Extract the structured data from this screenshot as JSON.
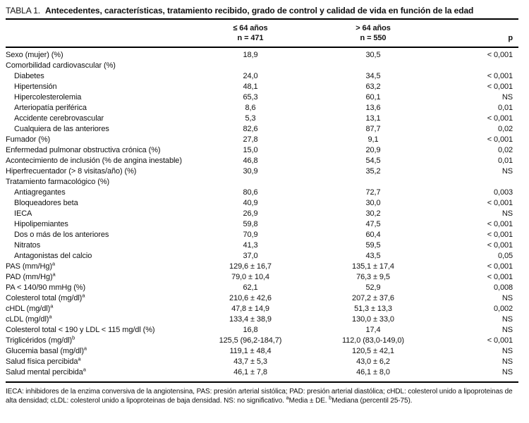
{
  "table": {
    "label": "TABLA 1.",
    "title": "Antecedentes, características, tratamiento recibido, grado de control y calidad de vida en función de la edad",
    "columns": [
      {
        "line1": "≤ 64 años",
        "line2": "n = 471"
      },
      {
        "line1": "> 64 años",
        "line2": "n = 550"
      },
      {
        "line1": "",
        "line2": "p"
      }
    ],
    "rows": [
      {
        "label": "Sexo (mujer) (%)",
        "indent": false,
        "sup": "",
        "v1": "18,9",
        "v2": "30,5",
        "p": "< 0,001"
      },
      {
        "label": "Comorbilidad cardiovascular (%)",
        "indent": false,
        "sup": "",
        "v1": "",
        "v2": "",
        "p": ""
      },
      {
        "label": "Diabetes",
        "indent": true,
        "sup": "",
        "v1": "24,0",
        "v2": "34,5",
        "p": "< 0,001"
      },
      {
        "label": "Hipertensión",
        "indent": true,
        "sup": "",
        "v1": "48,1",
        "v2": "63,2",
        "p": "< 0,001"
      },
      {
        "label": "Hipercolesterolemia",
        "indent": true,
        "sup": "",
        "v1": "65,3",
        "v2": "60,1",
        "p": "NS"
      },
      {
        "label": "Arteriopatía periférica",
        "indent": true,
        "sup": "",
        "v1": "8,6",
        "v2": "13,6",
        "p": "0,01"
      },
      {
        "label": "Accidente cerebrovascular",
        "indent": true,
        "sup": "",
        "v1": "5,3",
        "v2": "13,1",
        "p": "< 0,001"
      },
      {
        "label": "Cualquiera de las anteriores",
        "indent": true,
        "sup": "",
        "v1": "82,6",
        "v2": "87,7",
        "p": "0,02"
      },
      {
        "label": "Fumador (%)",
        "indent": false,
        "sup": "",
        "v1": "27,8",
        "v2": "9,1",
        "p": "< 0,001"
      },
      {
        "label": "Enfermedad pulmonar obstructiva crónica (%)",
        "indent": false,
        "sup": "",
        "v1": "15,0",
        "v2": "20,9",
        "p": "0,02"
      },
      {
        "label": "Acontecimiento de inclusión (% de angina inestable)",
        "indent": false,
        "sup": "",
        "v1": "46,8",
        "v2": "54,5",
        "p": "0,01"
      },
      {
        "label": "Hiperfrecuentador (> 8 visitas/año) (%)",
        "indent": false,
        "sup": "",
        "v1": "30,9",
        "v2": "35,2",
        "p": "NS"
      },
      {
        "label": "Tratamiento farmacológico (%)",
        "indent": false,
        "sup": "",
        "v1": "",
        "v2": "",
        "p": ""
      },
      {
        "label": "Antiagregantes",
        "indent": true,
        "sup": "",
        "v1": "80,6",
        "v2": "72,7",
        "p": "0,003"
      },
      {
        "label": "Bloqueadores beta",
        "indent": true,
        "sup": "",
        "v1": "40,9",
        "v2": "30,0",
        "p": "< 0,001"
      },
      {
        "label": "IECA",
        "indent": true,
        "sup": "",
        "v1": "26,9",
        "v2": "30,2",
        "p": "NS"
      },
      {
        "label": "Hipolipemiantes",
        "indent": true,
        "sup": "",
        "v1": "59,8",
        "v2": "47,5",
        "p": "< 0,001"
      },
      {
        "label": "Dos o más de los anteriores",
        "indent": true,
        "sup": "",
        "v1": "70,9",
        "v2": "60,4",
        "p": "< 0,001"
      },
      {
        "label": "Nitratos",
        "indent": true,
        "sup": "",
        "v1": "41,3",
        "v2": "59,5",
        "p": "< 0,001"
      },
      {
        "label": "Antagonistas del calcio",
        "indent": true,
        "sup": "",
        "v1": "37,0",
        "v2": "43,5",
        "p": "0,05"
      },
      {
        "label": "PAS (mm/Hg)",
        "indent": false,
        "sup": "a",
        "v1": "129,6 ± 16,7",
        "v2": "135,1 ± 17,4",
        "p": "< 0,001"
      },
      {
        "label": "PAD (mm/Hg)",
        "indent": false,
        "sup": "a",
        "v1": "79,0 ± 10,4",
        "v2": "76,3 ± 9,5",
        "p": "< 0,001"
      },
      {
        "label": "PA < 140/90 mmHg (%)",
        "indent": false,
        "sup": "",
        "v1": "62,1",
        "v2": "52,9",
        "p": "0,008"
      },
      {
        "label": "Colesterol total (mg/dl)",
        "indent": false,
        "sup": "a",
        "v1": "210,6 ± 42,6",
        "v2": "207,2 ± 37,6",
        "p": "NS"
      },
      {
        "label": "cHDL (mg/dl)",
        "indent": false,
        "sup": "a",
        "v1": "47,8 ± 14,9",
        "v2": "51,3 ± 13,3",
        "p": "0,002"
      },
      {
        "label": "cLDL (mg/dl)",
        "indent": false,
        "sup": "a",
        "v1": "133,4 ± 38,9",
        "v2": "130,0 ± 33,0",
        "p": "NS"
      },
      {
        "label": "Colesterol total < 190 y LDL < 115 mg/dl (%)",
        "indent": false,
        "sup": "",
        "v1": "16,8",
        "v2": "17,4",
        "p": "NS"
      },
      {
        "label": "Triglicéridos (mg/dl)",
        "indent": false,
        "sup": "b",
        "v1": "125,5 (96,2-184,7)",
        "v2": "112,0 (83,0-149,0)",
        "p": "< 0,001"
      },
      {
        "label": "Glucemia basal (mg/dl)",
        "indent": false,
        "sup": "a",
        "v1": "119,1 ± 48,4",
        "v2": "120,5 ± 42,1",
        "p": "NS"
      },
      {
        "label": "Salud física percibida",
        "indent": false,
        "sup": "a",
        "v1": "43,7 ± 5,3",
        "v2": "43,0 ± 6,2",
        "p": "NS"
      },
      {
        "label": "Salud mental percibida",
        "indent": false,
        "sup": "a",
        "v1": "46,1 ± 7,8",
        "v2": "46,1 ± 8,0",
        "p": "NS"
      }
    ],
    "footnote": {
      "text": "IECA: inhibidores de la enzima conversiva de la angiotensina, PAS: presión arterial sistólica; PAD: presión arterial diastólica; cHDL: colesterol unido a lipoproteinas de alta densidad; cLDL: colesterol unido a lipoproteinas de baja densidad. NS: no significativo. ",
      "sup_a": "a",
      "note_a": "Media ± DE. ",
      "sup_b": "b",
      "note_b": "Mediana (percentil 25-75)."
    }
  }
}
